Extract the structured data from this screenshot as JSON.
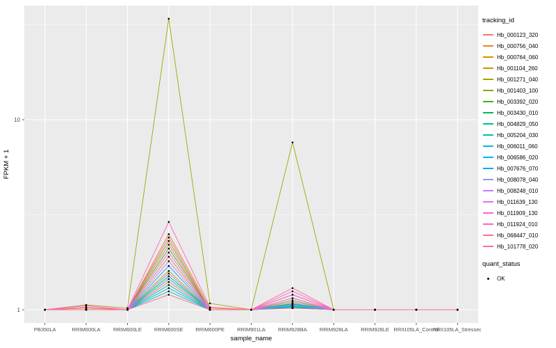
{
  "chart_data": {
    "type": "line",
    "title": "",
    "xlabel": "sample_name",
    "ylabel": "FPKM + 1",
    "yscale": "log10",
    "ylim": [
      0.93,
      42
    ],
    "yticks": [
      1,
      10
    ],
    "minor_yticks": [
      3.162,
      31.62
    ],
    "panel_bg": "#EBEBEB",
    "grid_color": "#FFFFFF",
    "tick_label_color": "#4D4D4D",
    "point_color": "#000000",
    "grid": true,
    "legend_position": "right",
    "categories": [
      "PB350LA",
      "RRIM600LA",
      "RRIM600LE",
      "RRIM600SE",
      "RRIM600PE",
      "RRIM901LA",
      "RRIM928BA",
      "RRIM928LA",
      "RRIM928LE",
      "RRII105LA_Control",
      "RRII105LA_Stressed"
    ],
    "series": [
      {
        "name": "Hb_000123_320",
        "color": "#F8766D",
        "values": [
          1,
          1,
          1,
          2.2,
          1,
          1,
          1.15,
          1,
          1,
          1,
          1
        ]
      },
      {
        "name": "Hb_000756_040",
        "color": "#EA8331",
        "values": [
          1,
          1,
          1,
          1.9,
          1,
          1,
          1.1,
          1,
          1,
          1,
          1
        ]
      },
      {
        "name": "Hb_000764_060",
        "color": "#D89000",
        "values": [
          1,
          1.02,
          1,
          2.5,
          1.02,
          1,
          1.2,
          1,
          1,
          1,
          1
        ]
      },
      {
        "name": "Hb_001104_260",
        "color": "#C09B00",
        "values": [
          1,
          1,
          1,
          1.6,
          1,
          1,
          1.05,
          1,
          1,
          1,
          1
        ]
      },
      {
        "name": "Hb_001271_040",
        "color": "#A3A500",
        "values": [
          1,
          1.06,
          1.02,
          34,
          1.08,
          1,
          7.6,
          1,
          1,
          1,
          1
        ]
      },
      {
        "name": "Hb_001403_100",
        "color": "#7CAE00",
        "values": [
          1,
          1,
          1,
          2.3,
          1,
          1,
          1.12,
          1,
          1,
          1,
          1
        ]
      },
      {
        "name": "Hb_003392_020",
        "color": "#39B600",
        "values": [
          1,
          1,
          1,
          2.1,
          1,
          1,
          1.08,
          1,
          1,
          1,
          1
        ]
      },
      {
        "name": "Hb_003430_010",
        "color": "#00BB4E",
        "values": [
          1,
          1,
          1,
          1.5,
          1,
          1,
          1.04,
          1,
          1,
          1,
          1
        ]
      },
      {
        "name": "Hb_004829_050",
        "color": "#00C087",
        "values": [
          1,
          1,
          1,
          1.35,
          1,
          1,
          1.03,
          1,
          1,
          1,
          1
        ]
      },
      {
        "name": "Hb_005204_030",
        "color": "#00C0B2",
        "values": [
          1,
          1,
          1,
          1.25,
          1,
          1,
          1.02,
          1,
          1,
          1,
          1
        ]
      },
      {
        "name": "Hb_006011_060",
        "color": "#00BCD8",
        "values": [
          1,
          1,
          1,
          1.45,
          1,
          1,
          1.05,
          1,
          1,
          1,
          1
        ]
      },
      {
        "name": "Hb_006586_020",
        "color": "#00B4EF",
        "values": [
          1,
          1,
          1,
          1.3,
          1,
          1,
          1.03,
          1,
          1,
          1,
          1
        ]
      },
      {
        "name": "Hb_007676_070",
        "color": "#00A5FF",
        "values": [
          1,
          1,
          1,
          1.7,
          1,
          1,
          1.07,
          1,
          1,
          1,
          1
        ]
      },
      {
        "name": "Hb_008078_040",
        "color": "#9590FF",
        "values": [
          1,
          1,
          1,
          1.55,
          1,
          1,
          1.06,
          1,
          1,
          1,
          1
        ]
      },
      {
        "name": "Hb_008248_010",
        "color": "#C77CFF",
        "values": [
          1,
          1,
          1,
          1.8,
          1,
          1,
          1.1,
          1,
          1,
          1,
          1
        ]
      },
      {
        "name": "Hb_011639_130",
        "color": "#E76BF3",
        "values": [
          1,
          1,
          1,
          2.0,
          1,
          1,
          1.15,
          1,
          1,
          1,
          1
        ]
      },
      {
        "name": "Hb_011909_130",
        "color": "#FD61D1",
        "values": [
          1,
          1.03,
          1,
          2.4,
          1,
          1,
          1.2,
          1,
          1,
          1,
          1
        ]
      },
      {
        "name": "Hb_011924_010",
        "color": "#FF62BC",
        "values": [
          1,
          1.05,
          1,
          2.9,
          1.03,
          1,
          1.25,
          1,
          1,
          1,
          1
        ]
      },
      {
        "name": "Hb_068447_010",
        "color": "#FF6A9A",
        "values": [
          1,
          1,
          1,
          1.4,
          1,
          1,
          1.3,
          1,
          1,
          1,
          1
        ]
      },
      {
        "name": "Hb_101778_020",
        "color": "#FF6C91",
        "values": [
          1,
          1,
          1,
          1.2,
          1,
          1,
          1.02,
          1,
          1,
          1,
          1
        ]
      }
    ],
    "legend": {
      "tracking_title": "tracking_id",
      "quant_title": "quant_status",
      "quant_items": [
        {
          "label": "OK"
        }
      ]
    }
  }
}
